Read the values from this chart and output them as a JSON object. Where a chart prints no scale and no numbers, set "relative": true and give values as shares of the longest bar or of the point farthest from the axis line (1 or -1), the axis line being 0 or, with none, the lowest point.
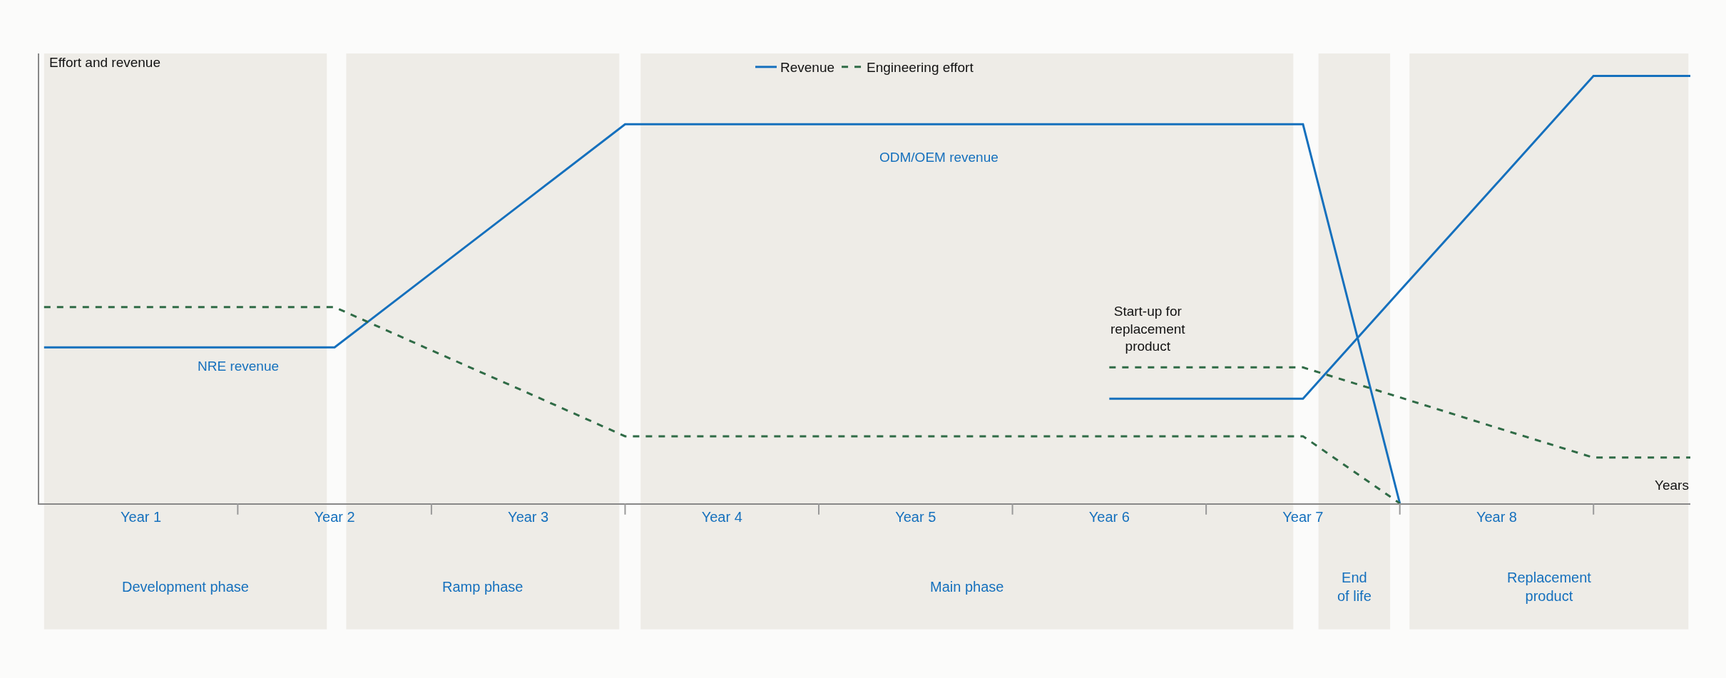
{
  "chart_data": {
    "type": "line",
    "relative": true,
    "xlabel": "Years",
    "ylabel": "Effort and revenue",
    "categories": [
      null,
      "Year 1",
      null,
      "Year 2",
      null,
      "Year 3",
      null,
      "Year 4",
      null,
      "Year 5",
      null,
      "Year 6",
      null,
      "Year 7",
      null,
      "Year 8",
      null,
      null
    ],
    "series": [
      {
        "name": "Revenue",
        "color": "#1570bd",
        "line_style": "solid",
        "values": [
          0.365,
          0.365,
          0.365,
          0.365,
          0.539,
          0.713,
          0.887,
          0.887,
          0.887,
          0.887,
          0.887,
          0.887,
          0.887,
          0.887,
          0,
          null,
          null,
          null
        ]
      },
      {
        "name": "Engineering effort",
        "color": "#2f6b46",
        "line_style": "dashed",
        "values": [
          0.459,
          0.459,
          0.459,
          0.459,
          0.358,
          0.258,
          0.157,
          0.157,
          0.157,
          0.157,
          0.157,
          0.157,
          0.157,
          0.157,
          0,
          null,
          null,
          null
        ]
      },
      {
        "color": "#1570bd",
        "line_style": "solid",
        "values": [
          null,
          null,
          null,
          null,
          null,
          null,
          null,
          null,
          null,
          null,
          null,
          0.245,
          0.245,
          0.245,
          0.497,
          0.748,
          1.0,
          1.0
        ]
      },
      {
        "color": "#2f6b46",
        "line_style": "dashed",
        "values": [
          null,
          null,
          null,
          null,
          null,
          null,
          null,
          null,
          null,
          null,
          null,
          0.318,
          0.318,
          0.318,
          0.248,
          0.177,
          0.107,
          0.107
        ]
      }
    ],
    "annotations": [
      "NRE revenue",
      "ODM/OEM revenue",
      "Start-up for\nreplacement\nproduct",
      "Development phase",
      "Ramp phase",
      "Main phase",
      "End\nof life",
      "Replacement\nproduct"
    ],
    "legend": "top",
    "grid": false,
    "marker": "none"
  }
}
